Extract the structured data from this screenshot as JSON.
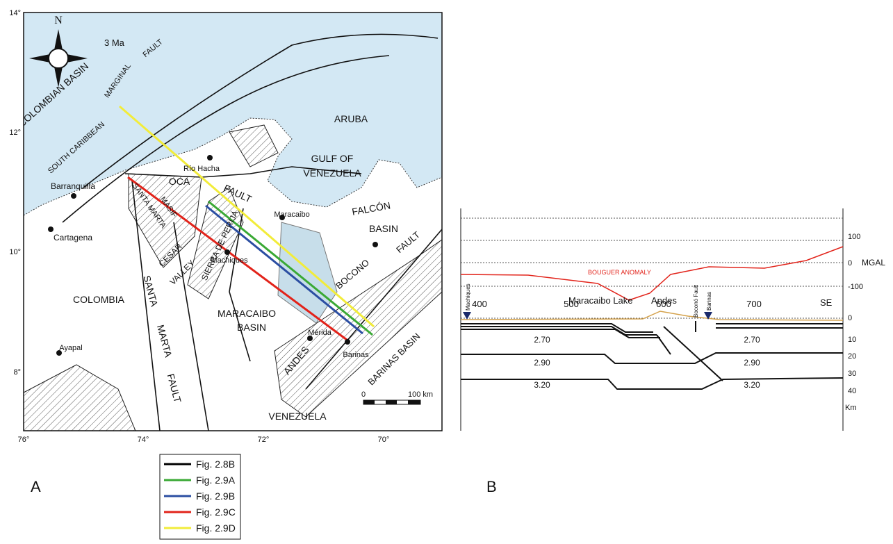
{
  "map": {
    "panel": "A",
    "age": "3 Ma",
    "north": "N",
    "lat_labels": [
      "14°",
      "12°",
      "10°",
      "8°"
    ],
    "lon_labels": [
      "76°",
      "74°",
      "72°",
      "70°"
    ],
    "places": [
      "COLOMBIAN BASIN",
      "SOUTH CARIBBEAN",
      "MARGINAL",
      "FAULT",
      "ARUBA",
      "Río Hacha",
      "GULF OF",
      "VENEZUELA",
      "OCA",
      "FAULT",
      "Barranquilla",
      "FALCÓN",
      "BASIN",
      "Maracaibo",
      "Cartagena",
      "SANTA MARTA",
      "MASIF",
      "CESAR",
      "VALLEY",
      "SIERRA DE PERIJÁ",
      "Machiques",
      "BOCONO",
      "FAULT",
      "SANTA",
      "MARTA",
      "FAULT",
      "COLOMBIA",
      "MARACAIBO",
      "BASIN",
      "ANDES",
      "Mérida",
      "Barinas",
      "BARINAS BASIN",
      "Ayapal",
      "VENEZUELA"
    ],
    "scale_bar": {
      "zero": "0",
      "length": "100 km"
    }
  },
  "legend": [
    {
      "label": "Fig. 2.8B",
      "color": "#000000"
    },
    {
      "label": "Fig. 2.9A",
      "color": "#3aa935"
    },
    {
      "label": "Fig. 2.9B",
      "color": "#2b4ea2"
    },
    {
      "label": "Fig. 2.9C",
      "color": "#e2231a"
    },
    {
      "label": "Fig. 2.9D",
      "color": "#f2ec3a"
    }
  ],
  "section": {
    "panel": "B",
    "gravity_ticks": [
      "100",
      "0",
      "-100"
    ],
    "gravity_unit": "MGAL",
    "depth_ticks": [
      "0",
      "10",
      "20",
      "30",
      "40"
    ],
    "depth_unit": "Km",
    "distance_ticks": [
      "400",
      "500",
      "600",
      "700"
    ],
    "anomaly": "BOUGUER ANOMALY",
    "labels": [
      "Maracaibo Lake",
      "Andes",
      "SE"
    ],
    "wells": [
      "Machiques",
      "Barinas"
    ],
    "fault": "Boconó Fault",
    "densities": [
      "2.70",
      "2.70",
      "2.90",
      "2.90",
      "3.20",
      "3.20"
    ]
  }
}
